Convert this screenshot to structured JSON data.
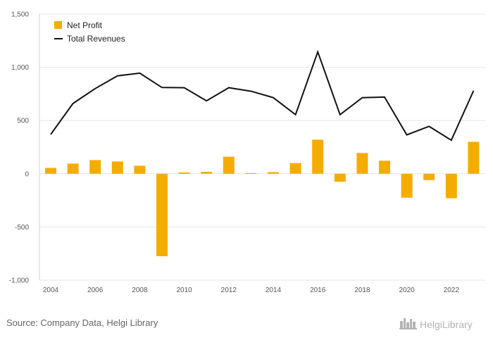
{
  "chart_data": {
    "type": "bar",
    "categories": [
      2004,
      2005,
      2006,
      2007,
      2008,
      2009,
      2010,
      2011,
      2012,
      2013,
      2014,
      2015,
      2016,
      2017,
      2018,
      2019,
      2020,
      2021,
      2022,
      2023
    ],
    "series": [
      {
        "name": "Net Profit",
        "type": "bar",
        "color": "#f5ac00",
        "values": [
          55,
          95,
          128,
          115,
          75,
          -775,
          12,
          18,
          160,
          5,
          15,
          100,
          320,
          -75,
          195,
          122,
          -225,
          -60,
          -230,
          300
        ]
      },
      {
        "name": "Total Revenues",
        "type": "line",
        "color": "#111111",
        "values": [
          370,
          660,
          800,
          920,
          945,
          810,
          808,
          685,
          808,
          775,
          715,
          555,
          1145,
          555,
          715,
          720,
          365,
          445,
          315,
          780
        ]
      }
    ],
    "ylim": [
      -1000,
      1500
    ],
    "yticks": [
      -1000,
      -500,
      0,
      500,
      1000,
      1500
    ],
    "ytick_labels": [
      "-1,000",
      "-500",
      "0",
      "500",
      "1,000",
      "1,500"
    ],
    "xtick_labels": [
      "2004",
      "2006",
      "2008",
      "2010",
      "2012",
      "2014",
      "2016",
      "2018",
      "2020",
      "2022"
    ],
    "grid": true,
    "legend": {
      "position": "top-left",
      "entries": [
        "Net Profit",
        "Total Revenues"
      ]
    }
  },
  "footer": {
    "source": "Source: Company Data, Helgi Library",
    "brand": "HelgiLibrary",
    "logo_icon": "city-skyline-icon"
  }
}
